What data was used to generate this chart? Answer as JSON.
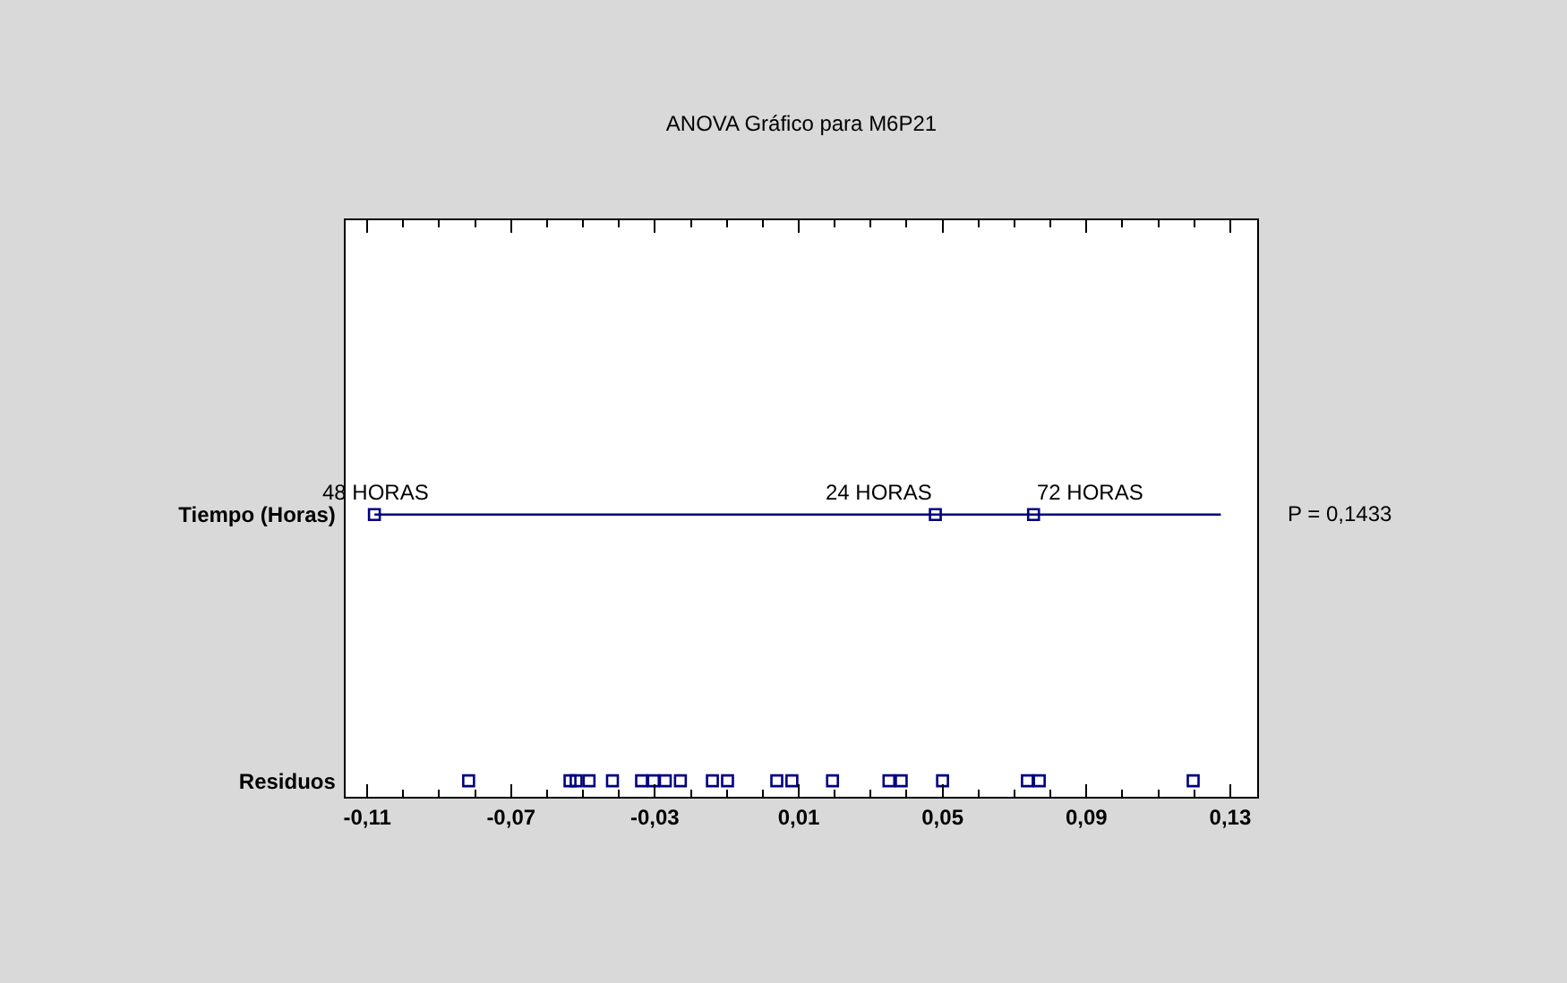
{
  "chart_data": {
    "type": "scatter",
    "title": "ANOVA Gráfico para M6P21",
    "orientation": "horizontal",
    "categories": [
      "Tiempo (Horas)",
      "Residuos"
    ],
    "series": [
      {
        "type": "line",
        "marker": "none",
        "color": "#000080",
        "x": [
          "Tiempo (Horas)",
          "Tiempo (Horas)"
        ],
        "values": [
          -0.108,
          0.1274
        ]
      },
      {
        "color": "#000080",
        "x": [
          "Tiempo (Horas)",
          "Tiempo (Horas)",
          "Tiempo (Horas)"
        ],
        "values": [
          -0.108,
          0.048,
          0.0753
        ]
      },
      {
        "color": "#000080",
        "x": [
          "Residuos",
          "Residuos",
          "Residuos",
          "Residuos",
          "Residuos",
          "Residuos",
          "Residuos",
          "Residuos",
          "Residuos",
          "Residuos",
          "Residuos",
          "Residuos",
          "Residuos",
          "Residuos",
          "Residuos",
          "Residuos",
          "Residuos",
          "Residuos",
          "Residuos",
          "Residuos"
        ],
        "values": [
          -0.0818,
          -0.0536,
          -0.0519,
          -0.0483,
          -0.0418,
          -0.0337,
          -0.0304,
          -0.0271,
          -0.0229,
          -0.014,
          -0.0098,
          0.0039,
          0.0081,
          0.0194,
          0.0351,
          0.0385,
          0.05,
          0.0736,
          0.0769,
          0.1197
        ]
      }
    ],
    "xlim": [
      -0.116,
      0.1375
    ],
    "xticks": [
      {
        "value": -0.11,
        "label": "-0,11"
      },
      {
        "value": -0.1,
        "label": null
      },
      {
        "value": -0.09,
        "label": null
      },
      {
        "value": -0.08,
        "label": null
      },
      {
        "value": -0.07,
        "label": "-0,07"
      },
      {
        "value": -0.06,
        "label": null
      },
      {
        "value": -0.05,
        "label": null
      },
      {
        "value": -0.04,
        "label": null
      },
      {
        "value": -0.03,
        "label": "-0,03"
      },
      {
        "value": -0.02,
        "label": null
      },
      {
        "value": -0.01,
        "label": null
      },
      {
        "value": 0,
        "label": null
      },
      {
        "value": 0.01,
        "label": "0,01"
      },
      {
        "value": 0.02,
        "label": null
      },
      {
        "value": 0.03,
        "label": null
      },
      {
        "value": 0.04,
        "label": null
      },
      {
        "value": 0.05,
        "label": "0,05"
      },
      {
        "value": 0.06,
        "label": null
      },
      {
        "value": 0.07,
        "label": null
      },
      {
        "value": 0.08,
        "label": null
      },
      {
        "value": 0.09,
        "label": "0,09"
      },
      {
        "value": 0.1,
        "label": null
      },
      {
        "value": 0.11,
        "label": null
      },
      {
        "value": 0.12,
        "label": null
      },
      {
        "value": 0.13,
        "label": "0,13"
      }
    ],
    "annotations": [
      {
        "text": "48 HORAS",
        "x": -0.108,
        "y": "Tiempo (Horas)"
      },
      {
        "text": "24 HORAS",
        "x": 0.048,
        "y": "Tiempo (Horas)"
      },
      {
        "text": "72 HORAS",
        "x": 0.0753,
        "y": "Tiempo (Horas)"
      },
      "P = 0,1433"
    ],
    "marker": "square",
    "grid": false
  }
}
